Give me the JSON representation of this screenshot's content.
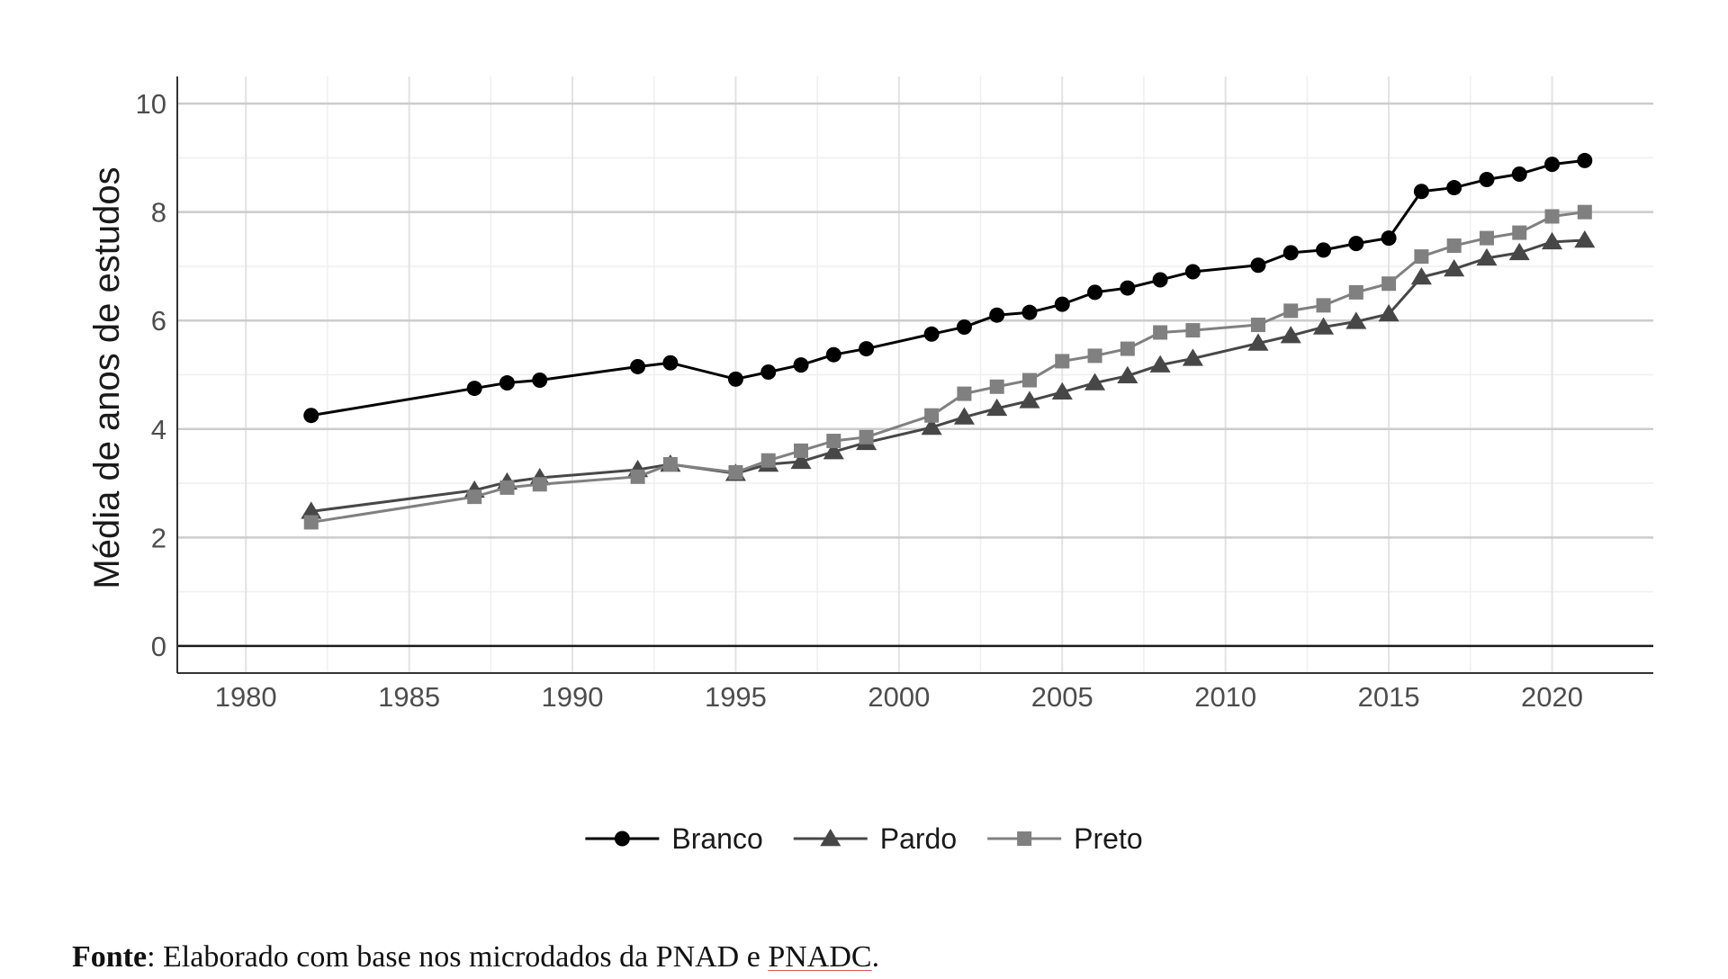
{
  "source_note": {
    "bold": "Fonte",
    "text_before": ": Elaborado com base nos microdados da PNAD e ",
    "underlined": "PNADC",
    "text_after": "."
  },
  "chart_data": {
    "type": "line",
    "title": "",
    "xlabel": "",
    "ylabel": "Média de anos de estudos",
    "xlim": [
      1977.9,
      2023.1
    ],
    "ylim": [
      -0.5,
      10.5
    ],
    "x_ticks": [
      1980,
      1985,
      1990,
      1995,
      2000,
      2005,
      2010,
      2015,
      2020
    ],
    "y_ticks": [
      0,
      2,
      4,
      6,
      8,
      10
    ],
    "grid": true,
    "legend_position": "bottom",
    "series": [
      {
        "name": "Branco",
        "color": "#000000",
        "marker": "circle",
        "x": [
          1982,
          1987,
          1988,
          1989,
          1992,
          1993,
          1995,
          1996,
          1997,
          1998,
          1999,
          2001,
          2002,
          2003,
          2004,
          2005,
          2006,
          2007,
          2008,
          2009,
          2011,
          2012,
          2013,
          2014,
          2015,
          2016,
          2017,
          2018,
          2019,
          2020,
          2021
        ],
        "values": [
          4.25,
          4.75,
          4.85,
          4.9,
          5.15,
          5.22,
          4.92,
          5.05,
          5.18,
          5.37,
          5.48,
          5.75,
          5.88,
          6.1,
          6.15,
          6.3,
          6.52,
          6.6,
          6.75,
          6.9,
          7.02,
          7.25,
          7.3,
          7.42,
          7.52,
          8.38,
          8.45,
          8.6,
          8.7,
          8.88,
          8.95
        ]
      },
      {
        "name": "Pardo",
        "color": "#474747",
        "marker": "triangle",
        "x": [
          1982,
          1987,
          1988,
          1989,
          1992,
          1993,
          1995,
          1996,
          1997,
          1998,
          1999,
          2001,
          2002,
          2003,
          2004,
          2005,
          2006,
          2007,
          2008,
          2009,
          2011,
          2012,
          2013,
          2014,
          2015,
          2016,
          2017,
          2018,
          2019,
          2020,
          2021
        ],
        "values": [
          2.48,
          2.87,
          3.02,
          3.1,
          3.25,
          3.35,
          3.18,
          3.35,
          3.4,
          3.58,
          3.75,
          4.03,
          4.22,
          4.38,
          4.52,
          4.68,
          4.85,
          4.98,
          5.18,
          5.3,
          5.58,
          5.72,
          5.88,
          5.98,
          6.12,
          6.8,
          6.95,
          7.15,
          7.25,
          7.45,
          7.48
        ]
      },
      {
        "name": "Preto",
        "color": "#808080",
        "marker": "square",
        "x": [
          1982,
          1987,
          1988,
          1989,
          1992,
          1993,
          1995,
          1996,
          1997,
          1998,
          1999,
          2001,
          2002,
          2003,
          2004,
          2005,
          2006,
          2007,
          2008,
          2009,
          2011,
          2012,
          2013,
          2014,
          2015,
          2016,
          2017,
          2018,
          2019,
          2020,
          2021
        ],
        "values": [
          2.28,
          2.75,
          2.92,
          2.98,
          3.12,
          3.35,
          3.2,
          3.42,
          3.6,
          3.78,
          3.85,
          4.25,
          4.65,
          4.78,
          4.9,
          5.25,
          5.35,
          5.48,
          5.78,
          5.82,
          5.92,
          6.18,
          6.28,
          6.52,
          6.68,
          7.18,
          7.38,
          7.52,
          7.62,
          7.92,
          8.0
        ]
      }
    ]
  }
}
